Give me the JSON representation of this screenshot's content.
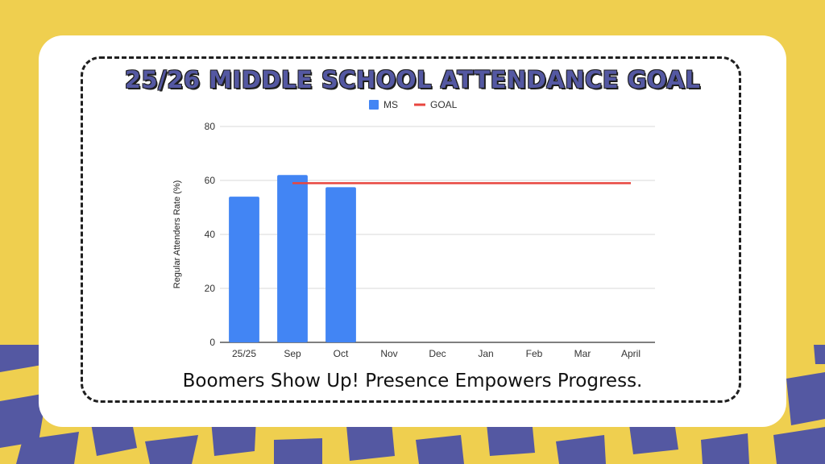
{
  "page": {
    "title": "25/26 MIDDLE SCHOOL ATTENDANCE GOAL",
    "tagline": "Boomers Show Up! Presence Empowers Progress."
  },
  "colors": {
    "background": "#efcf4f",
    "pattern": "#5458a2",
    "card": "#ffffff",
    "bar": "#4285f4",
    "goal_line": "#e8463f",
    "title": "#5458a2"
  },
  "chart_data": {
    "type": "bar",
    "title": "25/26 MIDDLE SCHOOL ATTENDANCE GOAL",
    "xlabel": "",
    "ylabel": "Regular Attenders Rate (%)",
    "categories": [
      "25/25",
      "Sep",
      "Oct",
      "Nov",
      "Dec",
      "Jan",
      "Feb",
      "Mar",
      "April"
    ],
    "series": [
      {
        "name": "MS",
        "type": "bar",
        "values": [
          54,
          62,
          57.5,
          null,
          null,
          null,
          null,
          null,
          null
        ]
      },
      {
        "name": "GOAL",
        "type": "line",
        "values": [
          null,
          59,
          59,
          59,
          59,
          59,
          59,
          59,
          59
        ]
      }
    ],
    "ylim": [
      0,
      80
    ],
    "yticks": [
      0,
      20,
      40,
      60,
      80
    ],
    "grid": true,
    "legend": "top-center"
  }
}
